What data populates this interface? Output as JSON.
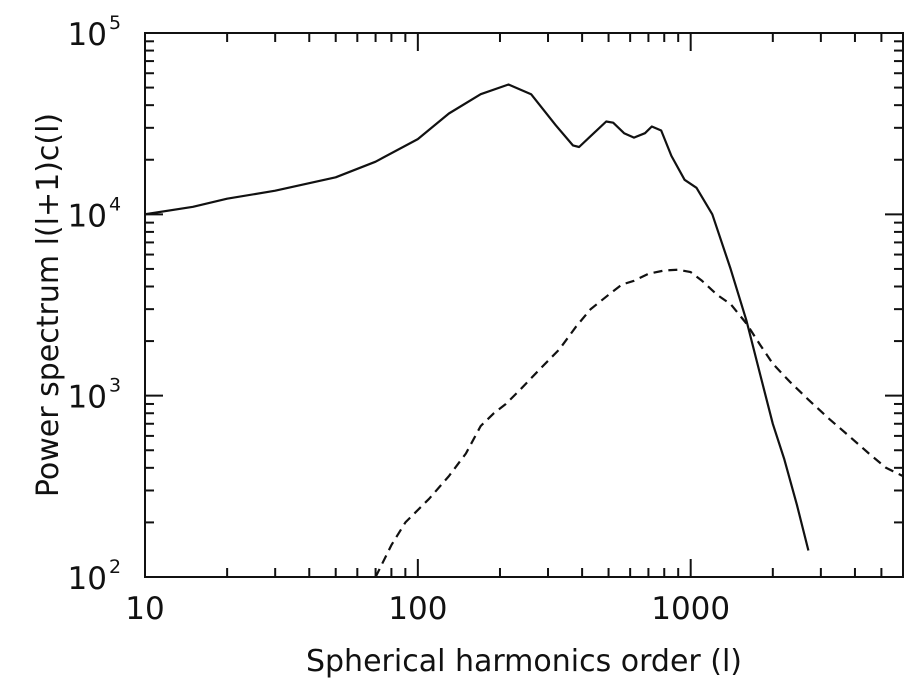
{
  "chart_data": {
    "type": "line",
    "title": "",
    "xlabel": "Spherical harmonics order (l)",
    "ylabel": "Power spectrum l(l+1)c(l)",
    "xscale": "log",
    "yscale": "log",
    "xlim": [
      10,
      6000
    ],
    "ylim": [
      100,
      100000
    ],
    "grid": false,
    "legend": "none",
    "x_ticks": [
      {
        "value": 10,
        "label": "10"
      },
      {
        "value": 100,
        "label": "100"
      },
      {
        "value": 1000,
        "label": "1000"
      }
    ],
    "y_ticks": [
      {
        "value": 100,
        "base": "10",
        "exp": "2"
      },
      {
        "value": 1000,
        "base": "10",
        "exp": "3"
      },
      {
        "value": 10000,
        "base": "10",
        "exp": "4"
      },
      {
        "value": 100000,
        "base": "10",
        "exp": "5"
      }
    ],
    "series": [
      {
        "style": "solid",
        "color": "#111111",
        "x": [
          10,
          15,
          20,
          30,
          50,
          70,
          100,
          130,
          170,
          215,
          260,
          320,
          370,
          390,
          430,
          490,
          520,
          570,
          620,
          680,
          720,
          780,
          850,
          950,
          1050,
          1200,
          1400,
          1600,
          1800,
          2000,
          2200,
          2450,
          2700
        ],
        "y": [
          10000,
          11000,
          12200,
          13500,
          16000,
          19500,
          26000,
          36000,
          46000,
          52000,
          46000,
          31000,
          24000,
          23500,
          27000,
          32500,
          32000,
          28000,
          26500,
          28000,
          30500,
          29000,
          21000,
          15500,
          14000,
          10000,
          5000,
          2600,
          1300,
          700,
          450,
          250,
          140
        ]
      },
      {
        "style": "dashed",
        "color": "#111111",
        "x": [
          70,
          80,
          90,
          110,
          130,
          150,
          170,
          190,
          210,
          240,
          280,
          330,
          380,
          430,
          500,
          560,
          620,
          700,
          800,
          900,
          1000,
          1100,
          1250,
          1400,
          1600,
          1800,
          2000,
          2300,
          2700,
          3200,
          3800,
          4500,
          5200,
          6000
        ],
        "y": [
          100,
          150,
          200,
          270,
          360,
          480,
          680,
          800,
          900,
          1100,
          1400,
          1800,
          2400,
          3000,
          3600,
          4100,
          4300,
          4700,
          4900,
          4950,
          4800,
          4300,
          3600,
          3200,
          2500,
          1900,
          1500,
          1200,
          950,
          750,
          600,
          480,
          400,
          360
        ]
      }
    ]
  }
}
